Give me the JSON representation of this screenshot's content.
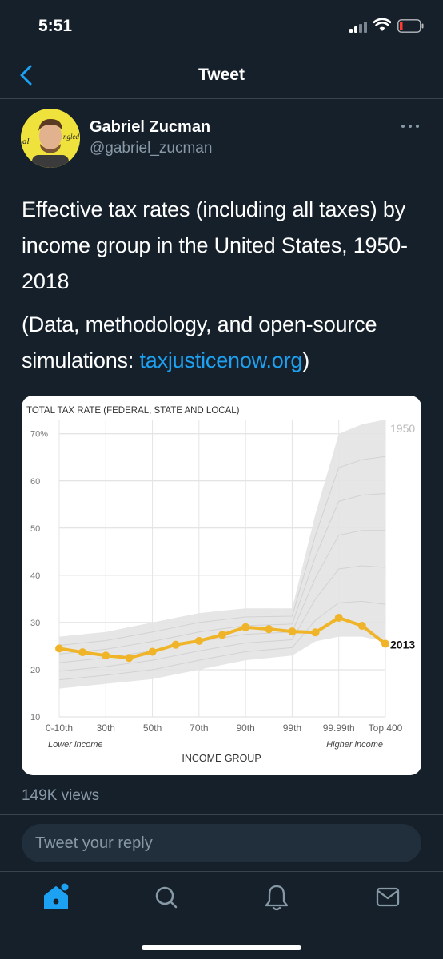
{
  "status_bar": {
    "time": "5:51"
  },
  "nav": {
    "title": "Tweet"
  },
  "author": {
    "name": "Gabriel Zucman",
    "handle": "@gabriel_zucman",
    "avatar_text": "al",
    "avatar_text2": "ngled"
  },
  "tweet": {
    "text": "Effective tax rates (including all taxes) by income group in the United States, 1950-2018",
    "text2_prefix": "(Data, methodology, and open-source simulations: ",
    "link": "taxjusticenow.org",
    "text2_suffix": ")"
  },
  "views": "149K views",
  "reply": {
    "placeholder": "Tweet your reply"
  },
  "colors": {
    "background": "#15202b",
    "accent": "#1da1f2",
    "line2013": "#f0b429",
    "band": "#e3e3e3"
  },
  "icons": [
    "chevron-left-icon",
    "more-icon",
    "home-icon",
    "search-icon",
    "bell-icon",
    "mail-icon"
  ],
  "chart_data": {
    "type": "line",
    "title": "TOTAL TAX RATE (FEDERAL, STATE AND LOCAL)",
    "xlabel": "INCOME GROUP",
    "ylabel": "",
    "ylim": [
      10,
      73
    ],
    "yticks": [
      "70%",
      "60",
      "50",
      "40",
      "30",
      "20",
      "10"
    ],
    "x_tick_labels": [
      "0-10th",
      "30th",
      "50th",
      "70th",
      "90th",
      "99th",
      "99.99th",
      "Top 400"
    ],
    "lower_label": "Lower income",
    "higher_label": "Higher income",
    "series": [
      {
        "name": "2013",
        "values": [
          24.5,
          23.7,
          23.0,
          22.5,
          23.8,
          25.3,
          26.1,
          27.4,
          29.0,
          28.6,
          28.1,
          27.9,
          31.0,
          29.3,
          25.5
        ]
      }
    ],
    "band_label": "1950",
    "band": {
      "upper": [
        27,
        27.5,
        28,
        29,
        30,
        31,
        32,
        32.5,
        33,
        33,
        33,
        53,
        70,
        72,
        73
      ],
      "lower": [
        16,
        16.5,
        17,
        17.5,
        18,
        19,
        20,
        21,
        22,
        22.5,
        23,
        26,
        27,
        27,
        26
      ]
    },
    "grid": true
  }
}
